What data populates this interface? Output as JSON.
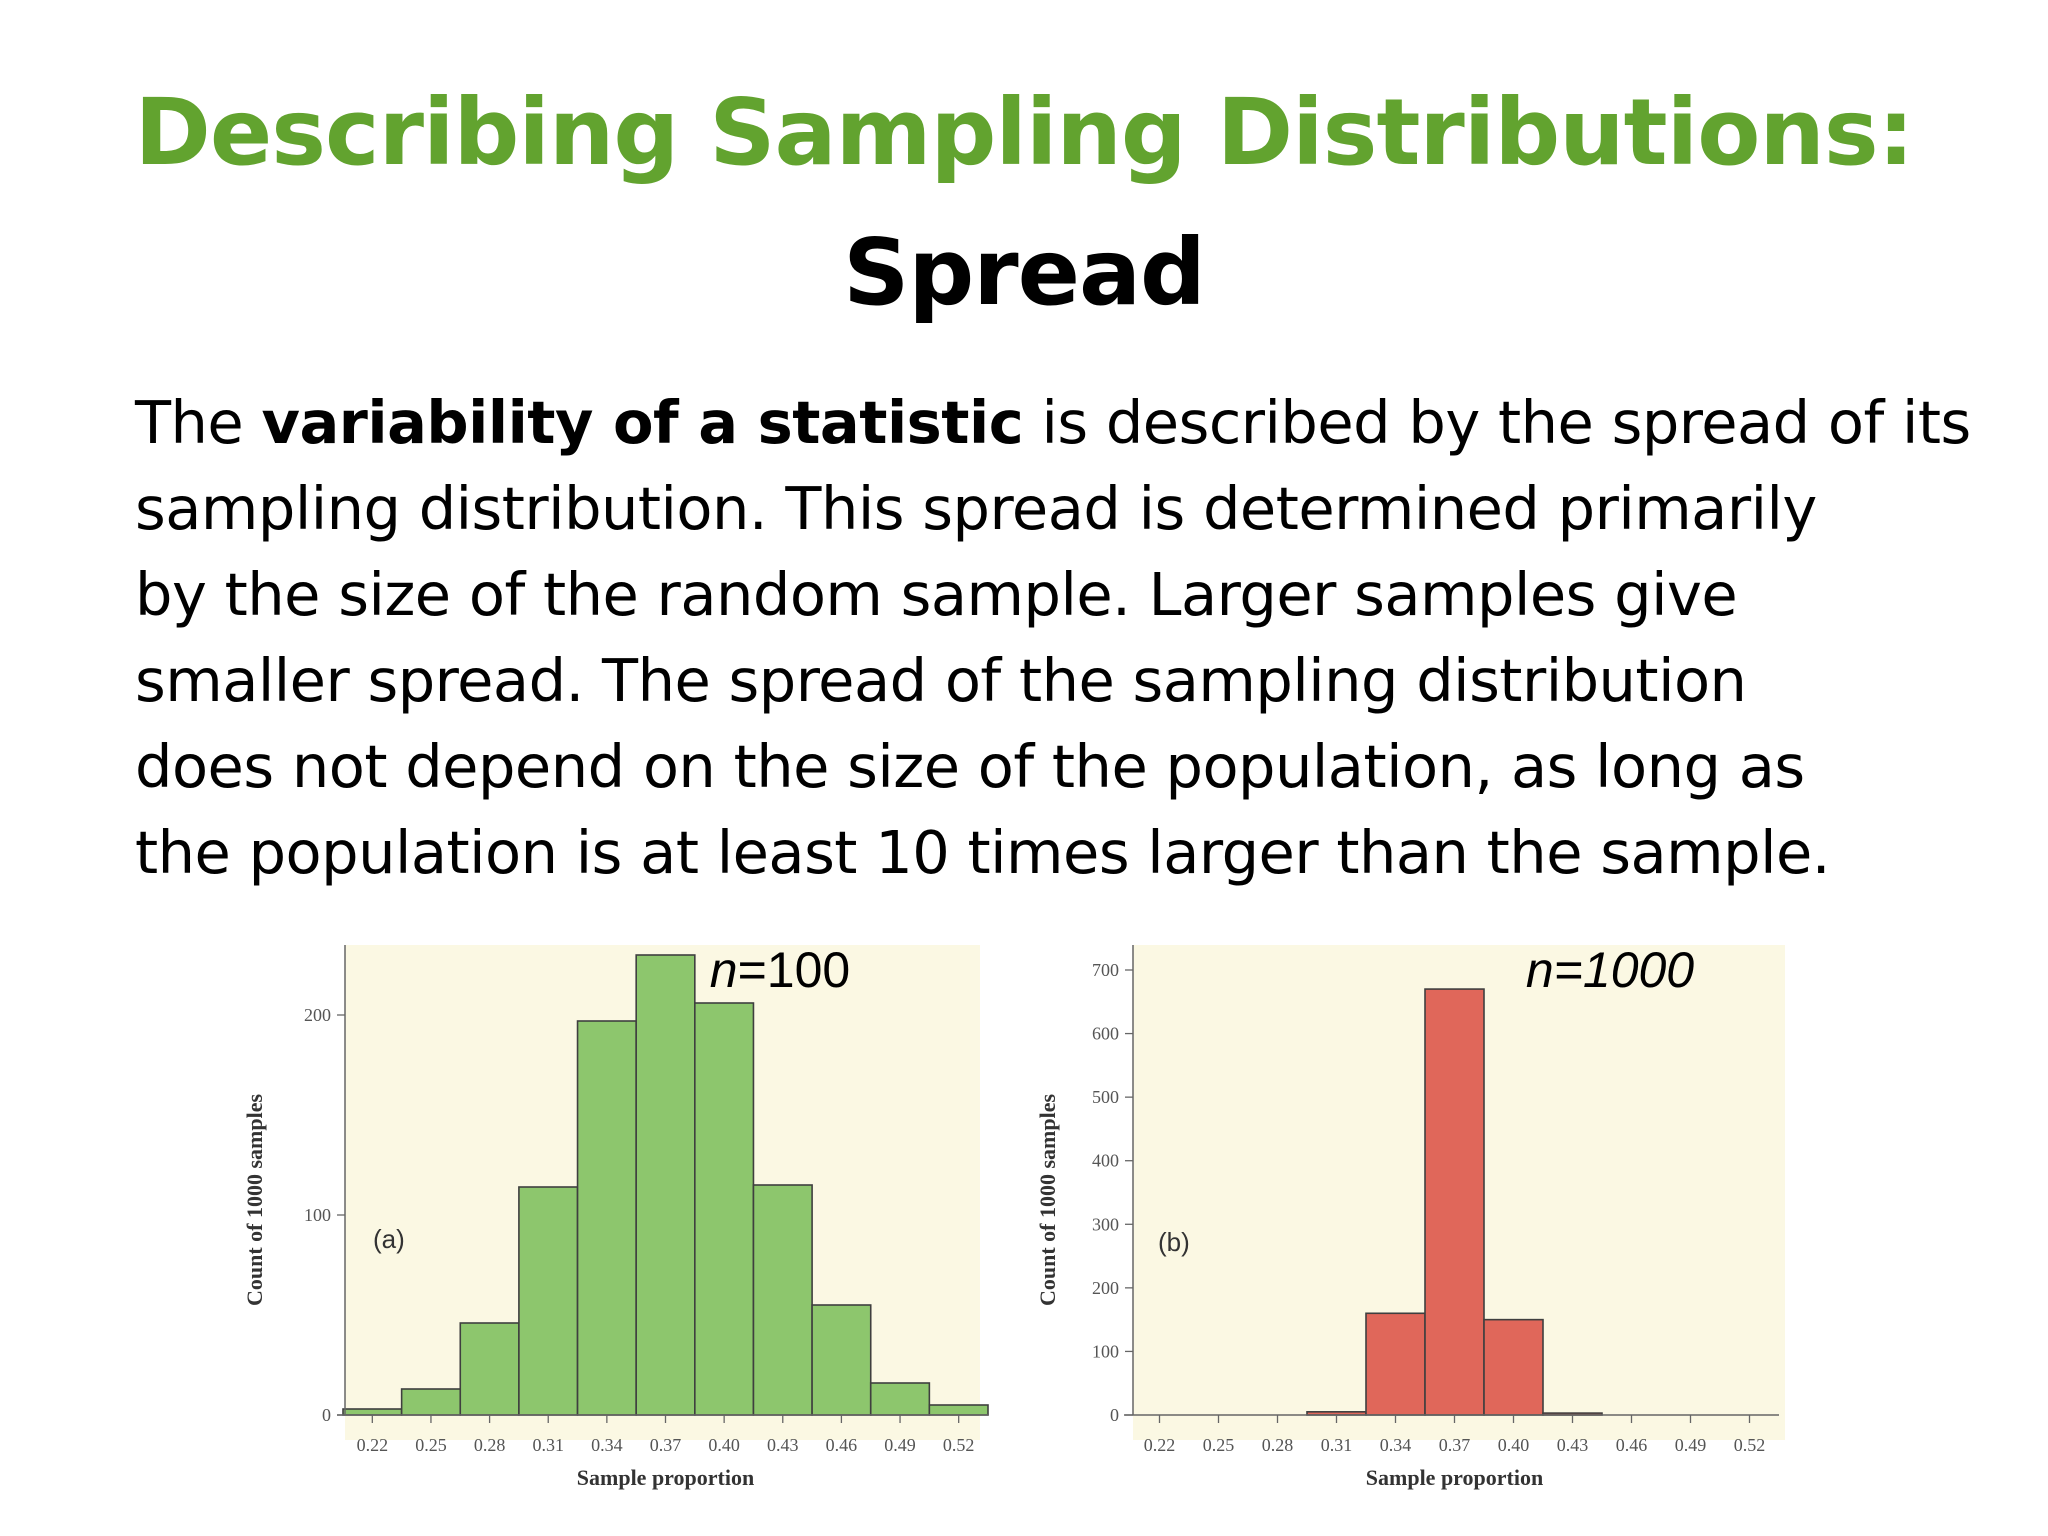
{
  "slide": {
    "title": "Describing Sampling Distributions:",
    "subtitle": "Spread",
    "body": {
      "line1_pre": "The ",
      "line1_bold": "variability of a statistic",
      "line1_post": " is described by the spread of its",
      "line2": "sampling distribution. This spread is determined primarily",
      "line3": "by the size of the random sample. Larger samples give",
      "line4": "smaller spread. The spread of the sampling distribution",
      "line5": "does not depend on the size of the population, as long as",
      "line6": "the population is at least 10 times larger than the sample."
    }
  },
  "colors": {
    "title": "#62a32f",
    "plot_background": "#fbf8e3",
    "bar_a": "#8dc66d",
    "bar_b": "#e0675a",
    "bar_edge": "#3f3f3f"
  },
  "chart_data": [
    {
      "type": "bar",
      "panel_label": "(a)",
      "n_var": "n",
      "n_eq": "=100",
      "xlabel": "Sample proportion",
      "ylabel": "Count of 1000 samples",
      "xticks": [
        "0.22",
        "0.25",
        "0.28",
        "0.31",
        "0.34",
        "0.37",
        "0.40",
        "0.43",
        "0.46",
        "0.49",
        "0.52"
      ],
      "yticks": [
        0,
        100,
        200
      ],
      "ylim": [
        0,
        230
      ],
      "bin_edges": [
        0.205,
        0.235,
        0.265,
        0.295,
        0.325,
        0.355,
        0.385,
        0.415,
        0.445,
        0.475,
        0.505,
        0.535
      ],
      "values": [
        3,
        13,
        46,
        114,
        197,
        230,
        206,
        115,
        55,
        16,
        5
      ],
      "grid": false
    },
    {
      "type": "bar",
      "panel_label": "(b)",
      "n_label": "n=1000",
      "xlabel": "Sample proportion",
      "ylabel": "Count of 1000 samples",
      "xticks": [
        "0.22",
        "0.25",
        "0.28",
        "0.31",
        "0.34",
        "0.37",
        "0.40",
        "0.43",
        "0.46",
        "0.49",
        "0.52"
      ],
      "yticks": [
        0,
        100,
        200,
        300,
        400,
        500,
        600,
        700
      ],
      "ylim": [
        0,
        700
      ],
      "bin_edges": [
        0.295,
        0.325,
        0.355,
        0.385,
        0.415,
        0.445
      ],
      "values": [
        5,
        160,
        670,
        150,
        3
      ],
      "grid": false
    }
  ]
}
